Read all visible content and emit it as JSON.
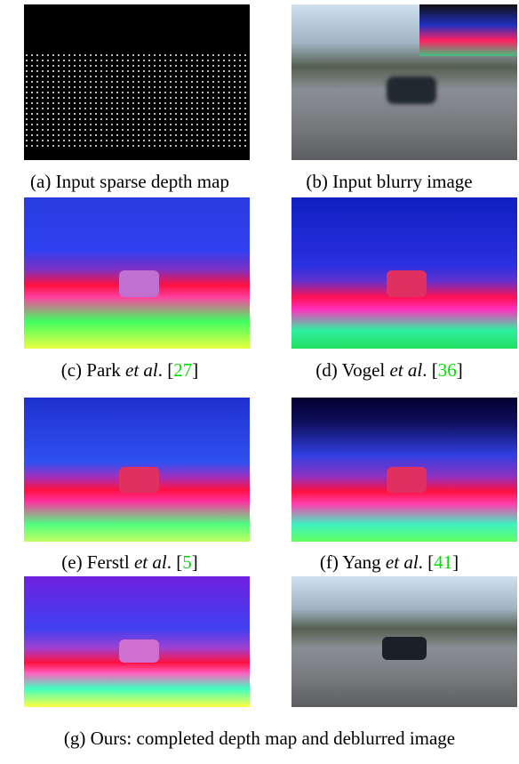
{
  "figure": {
    "panels": [
      {
        "text": "(a) Input sparse depth map"
      },
      {
        "text": "(b) Input blurry image"
      },
      {
        "text": "(c) Park",
        "em": "et al",
        "after": ". [",
        "ref": "27",
        "close": "]"
      },
      {
        "text": "(d) Vogel",
        "em": "et al",
        "after": ". [",
        "ref": "36",
        "close": "]"
      },
      {
        "text": "(e) Ferstl",
        "em": "et al",
        "after": ". [",
        "ref": "5",
        "close": "]"
      },
      {
        "text": "(f) Yang",
        "em": "et al",
        "after": ". [",
        "ref": "41",
        "close": "]"
      }
    ],
    "caption": "(g) Ours: completed depth map and deblurred image"
  }
}
